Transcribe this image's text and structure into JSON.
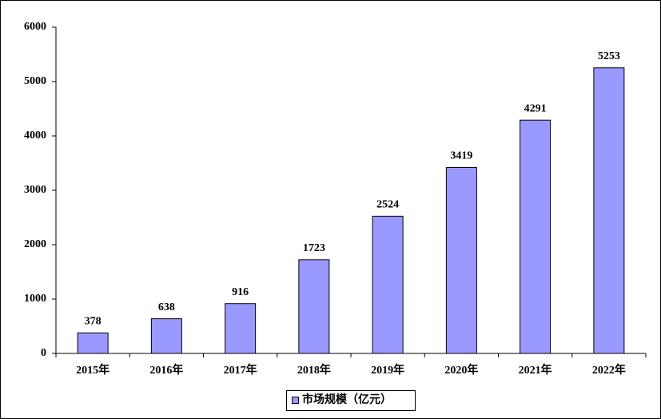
{
  "chart_data": {
    "type": "bar",
    "categories": [
      "2015年",
      "2016年",
      "2017年",
      "2018年",
      "2019年",
      "2020年",
      "2021年",
      "2022年"
    ],
    "series": [
      {
        "name": "市场规模（亿元）",
        "color": "#9999ff",
        "values": [
          378,
          638,
          916,
          1723,
          2524,
          3419,
          4291,
          5253
        ]
      }
    ],
    "ylim": [
      0,
      6000
    ],
    "yticks": [
      0,
      1000,
      2000,
      3000,
      4000,
      5000,
      6000
    ],
    "grid": false,
    "legend": "bottom",
    "data_labels": true
  }
}
